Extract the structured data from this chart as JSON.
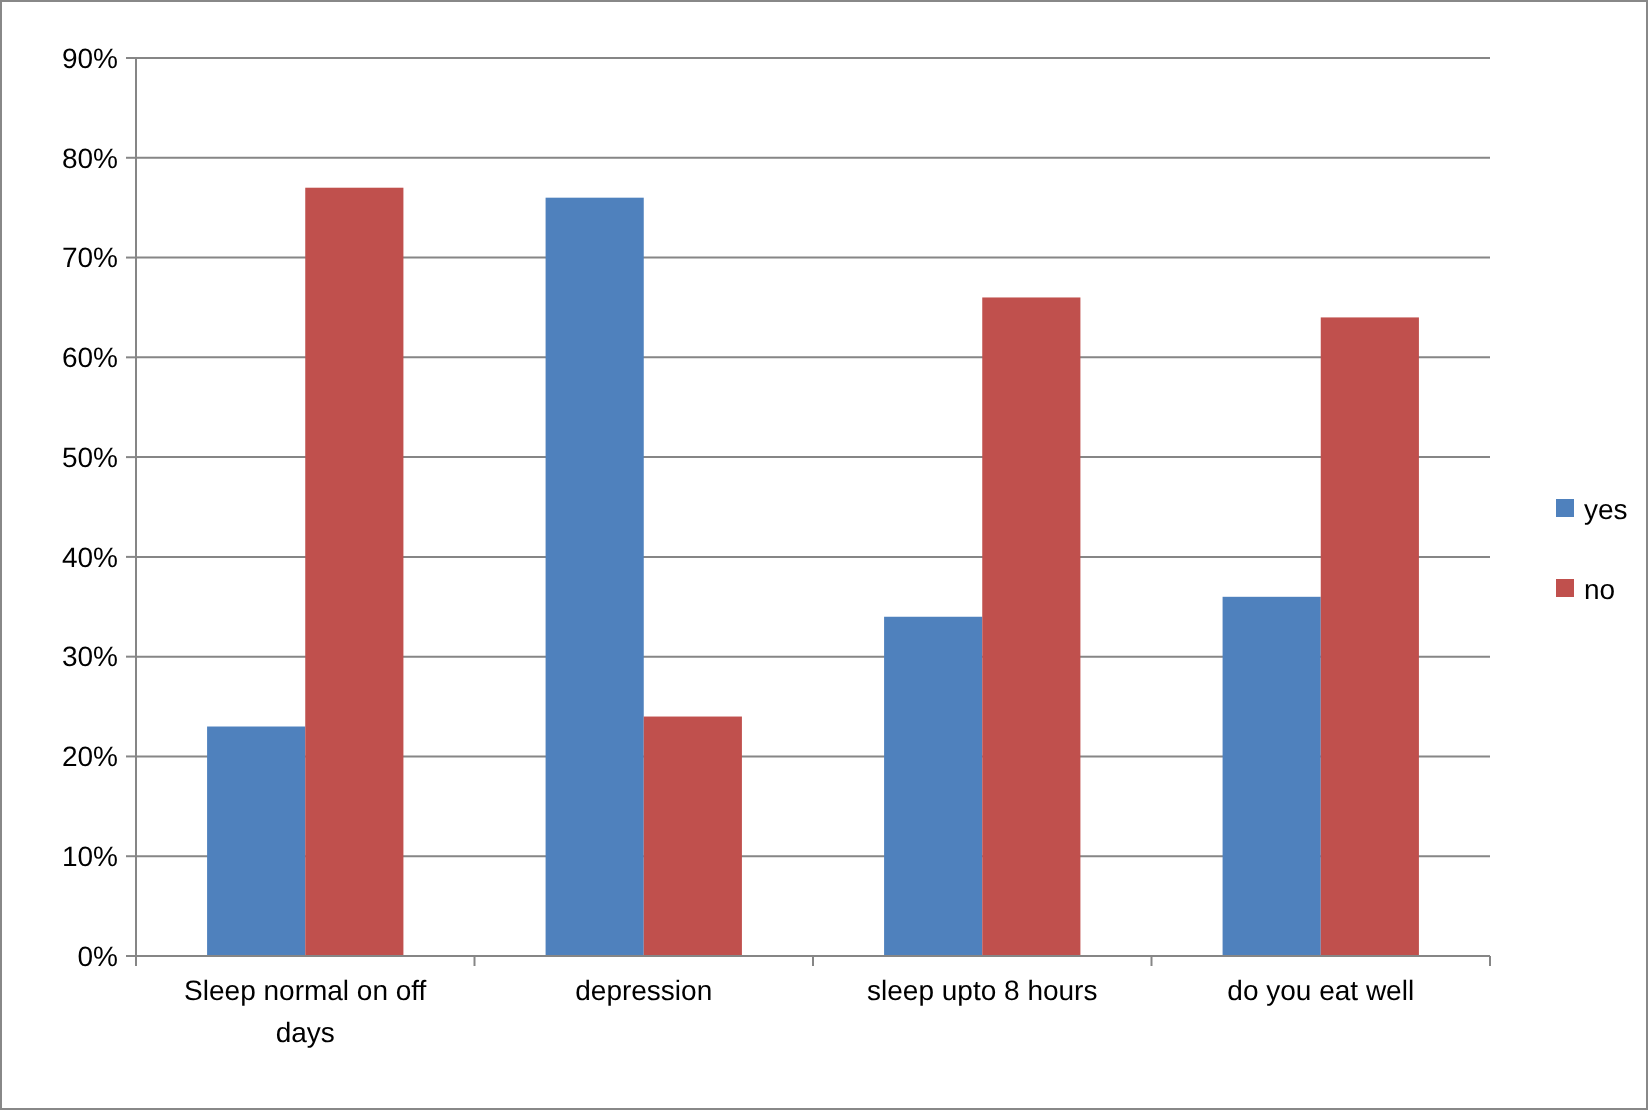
{
  "chart_data": {
    "type": "bar",
    "categories": [
      "Sleep normal on off days",
      "depression",
      "sleep upto 8 hours",
      "do you eat well"
    ],
    "series": [
      {
        "name": "yes",
        "color": "#4f81bd",
        "values": [
          23,
          76,
          34,
          36
        ]
      },
      {
        "name": "no",
        "color": "#c0504d",
        "values": [
          77,
          24,
          66,
          64
        ]
      }
    ],
    "ylim": [
      0,
      90
    ],
    "yticks": [
      {
        "value": 0,
        "label": "0%"
      },
      {
        "value": 10,
        "label": "10%"
      },
      {
        "value": 20,
        "label": "20%"
      },
      {
        "value": 30,
        "label": "30%"
      },
      {
        "value": 40,
        "label": "40%"
      },
      {
        "value": 50,
        "label": "50%"
      },
      {
        "value": 60,
        "label": "60%"
      },
      {
        "value": 70,
        "label": "70%"
      },
      {
        "value": 80,
        "label": "80%"
      },
      {
        "value": 90,
        "label": "90%"
      }
    ],
    "grid": "y",
    "legend": "right"
  }
}
